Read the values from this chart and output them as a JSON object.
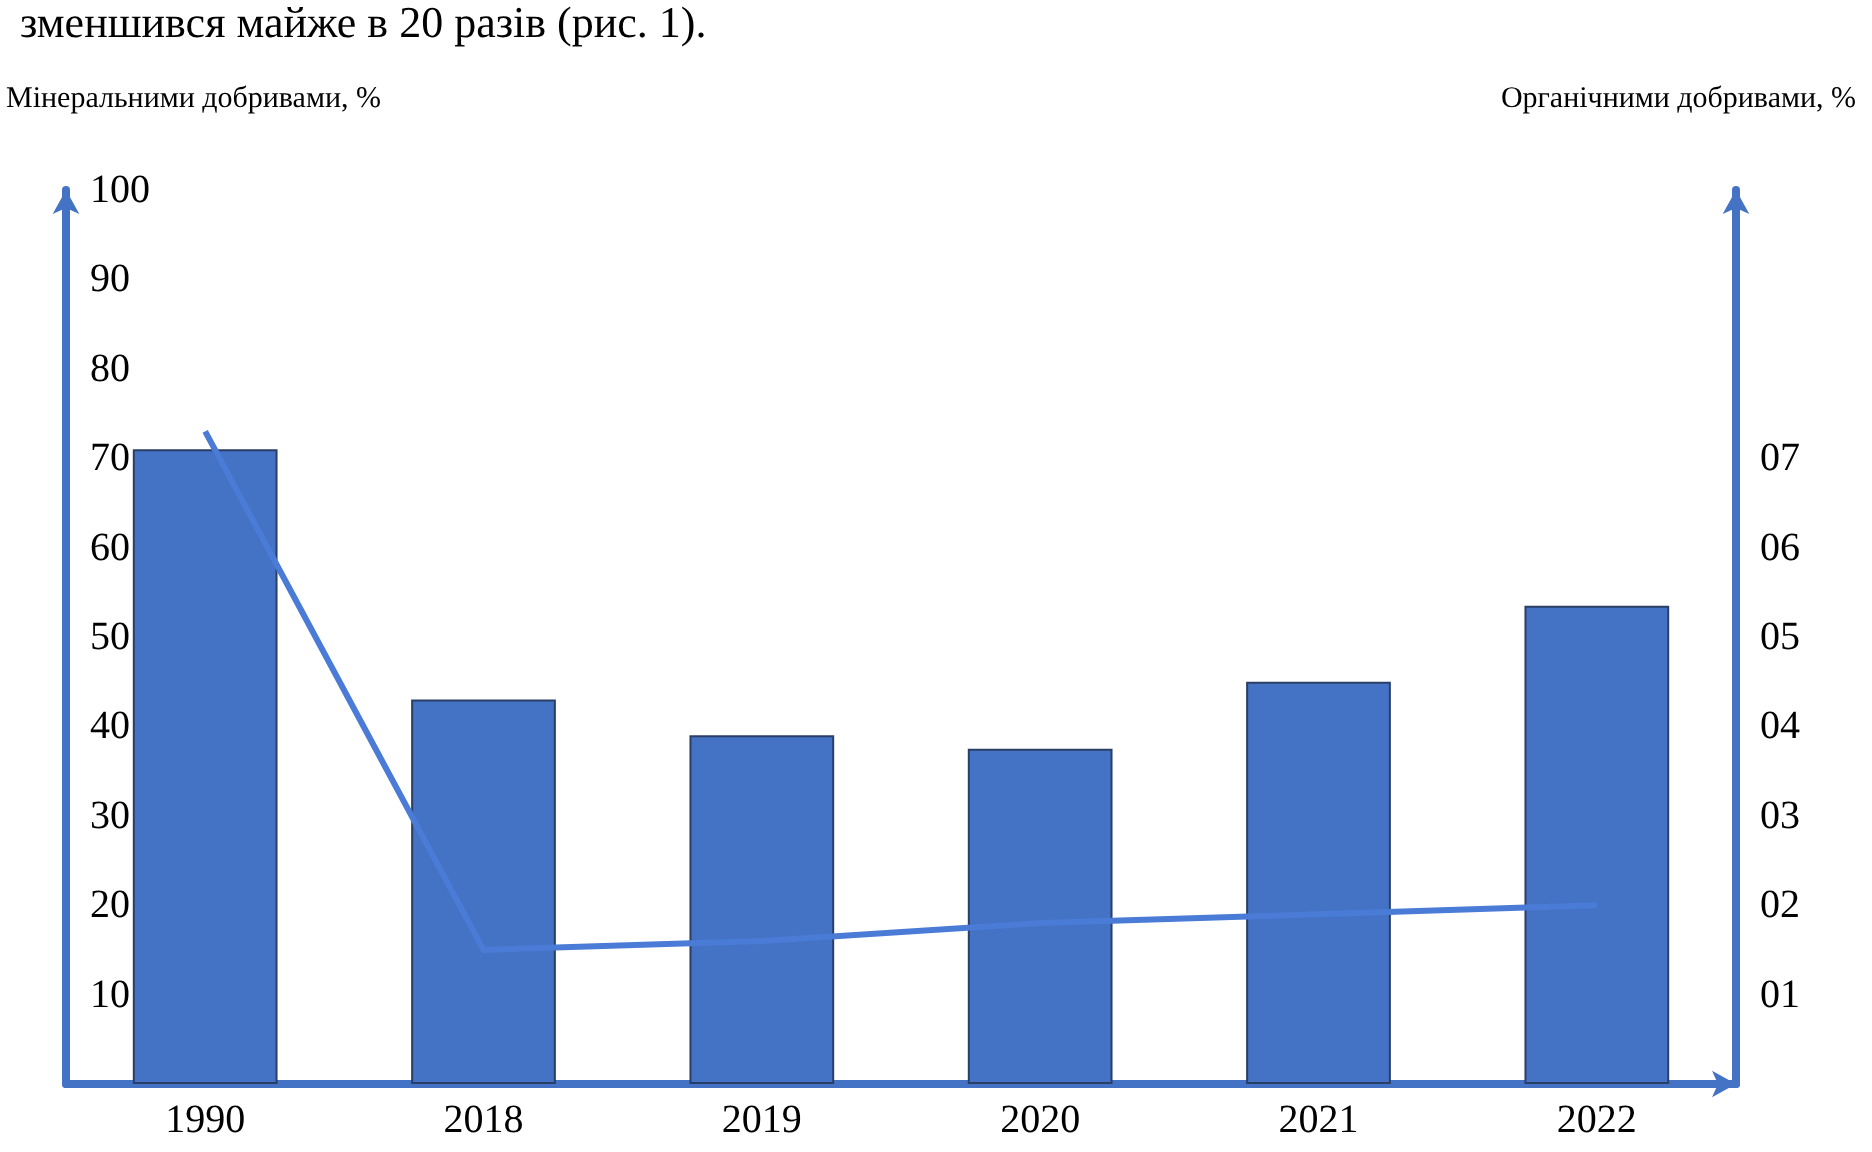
{
  "chart_data": {
    "type": "bar",
    "annotations": [
      "зменшився майже в 20 разів (рис. 1)."
    ],
    "ylabel": "Мінеральними добривами, %",
    "y2label": "Органічними добривами, %",
    "categories": [
      "1990",
      "2018",
      "2019",
      "2020",
      "2021",
      "2022"
    ],
    "series": [
      {
        "color": "#4472c4",
        "values": [
          71,
          43,
          39,
          37.5,
          45,
          53.5
        ]
      },
      {
        "type": "line",
        "axis": "y2",
        "color": "#4a7bd6",
        "values": [
          7.3,
          1.5,
          1.6,
          1.8,
          1.9,
          2.0
        ]
      }
    ],
    "ylim": [
      0,
      100
    ],
    "yticks": [
      10,
      20,
      30,
      40,
      50,
      60,
      70,
      80,
      90,
      100
    ],
    "y2lim": [
      0,
      10
    ],
    "y2ticks": [
      {
        "value": 1,
        "label": "01"
      },
      {
        "value": 2,
        "label": "02"
      },
      {
        "value": 3,
        "label": "03"
      },
      {
        "value": 4,
        "label": "04"
      },
      {
        "value": 5,
        "label": "05"
      },
      {
        "value": 6,
        "label": "06"
      },
      {
        "value": 7,
        "label": "07"
      }
    ],
    "marker": "none",
    "grid": false
  }
}
